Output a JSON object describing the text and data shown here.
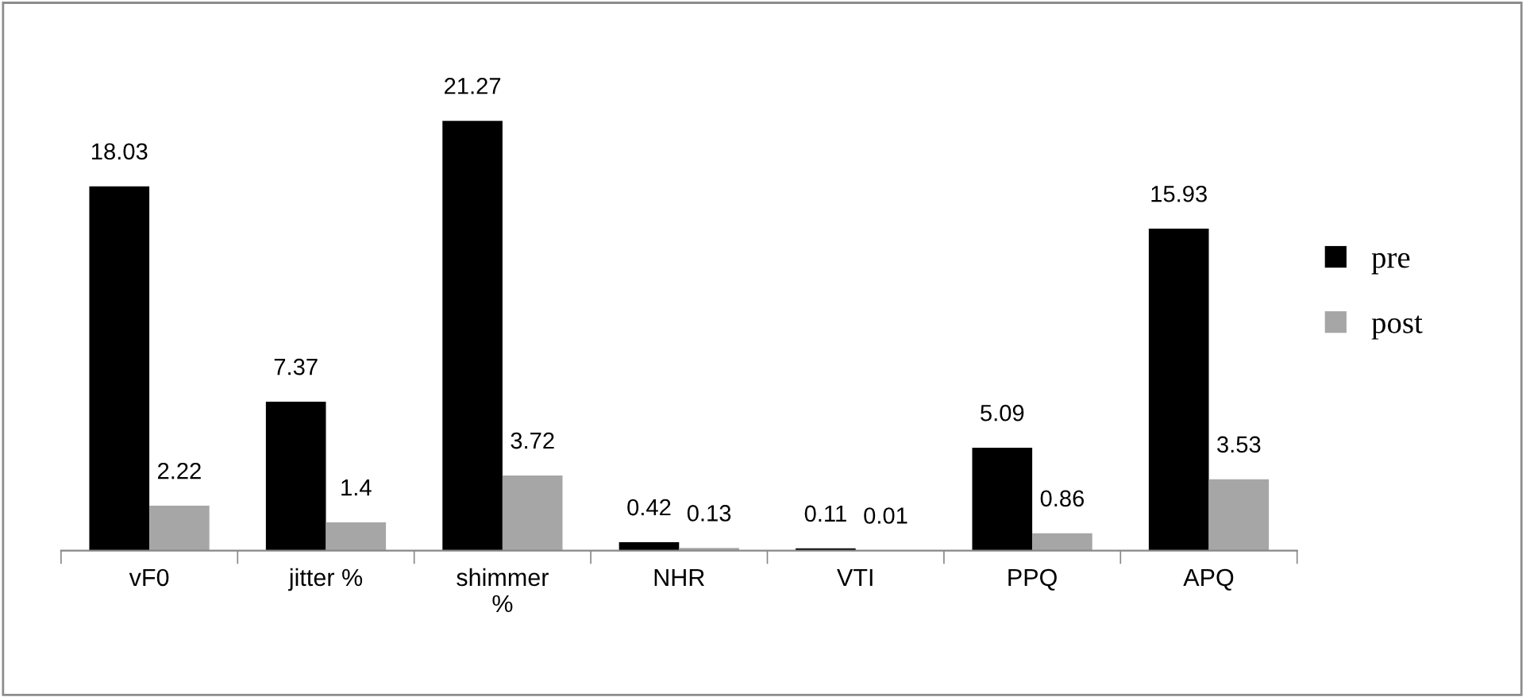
{
  "chart_data": {
    "type": "bar",
    "categories": [
      "vF0",
      "jitter %",
      "shimmer\n%",
      "NHR",
      "VTI",
      "PPQ",
      "APQ"
    ],
    "series": [
      {
        "name": "pre",
        "color": "#000000",
        "values": [
          18.03,
          7.37,
          21.27,
          0.42,
          0.11,
          5.09,
          15.93
        ]
      },
      {
        "name": "post",
        "color": "#a6a6a6",
        "values": [
          2.22,
          1.4,
          3.72,
          0.13,
          0.01,
          0.86,
          3.53
        ]
      }
    ],
    "data_labels": true,
    "legend": "right",
    "grid": false
  }
}
